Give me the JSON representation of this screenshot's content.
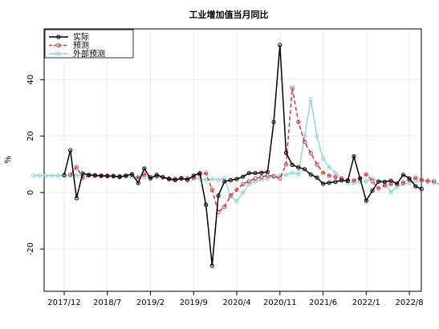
{
  "chart_data": {
    "type": "line",
    "title": "工业增加值当月同比",
    "xlabel": "",
    "ylabel": "%",
    "ylim": [
      -35,
      58
    ],
    "yticks": [
      -20,
      0,
      20,
      40
    ],
    "x_tick_labels": [
      "2017/12",
      "2018/7",
      "2019/2",
      "2019/9",
      "2020/4",
      "2020/11",
      "2021/6",
      "2022/1",
      "2022/8"
    ],
    "x_tick_index": [
      0,
      7,
      14,
      21,
      28,
      35,
      42,
      49,
      56
    ],
    "grid": true,
    "legend_position": "top-left",
    "series": [
      {
        "name": "实际",
        "color": "#000000",
        "dash": "solid",
        "start_index": 0,
        "values": [
          6.2,
          15.0,
          -2.0,
          6.8,
          6.3,
          6.0,
          6.0,
          5.8,
          5.9,
          5.5,
          6.0,
          6.5,
          3.4,
          8.5,
          5.0,
          6.3,
          5.4,
          4.8,
          4.4,
          5.0,
          4.5,
          6.0,
          6.9,
          -4.3,
          -25.9,
          -1.1,
          3.9,
          4.4,
          4.8,
          5.6,
          6.9,
          6.9,
          7.0,
          7.3,
          25.0,
          52.3,
          14.1,
          9.8,
          8.9,
          8.3,
          6.4,
          5.3,
          3.1,
          3.5,
          3.8,
          4.3,
          4.1,
          12.8,
          5.0,
          -2.9,
          0.7,
          3.9,
          3.8,
          4.2,
          3.1,
          6.3,
          5.0,
          2.2,
          1.3
        ]
      },
      {
        "name": "预测",
        "color": "#e03030",
        "dash": "dashed",
        "start_index": 1,
        "values": [
          6.3,
          9.0,
          5.2,
          6.0,
          6.2,
          5.8,
          6.0,
          5.7,
          5.8,
          5.9,
          6.3,
          5.2,
          6.5,
          5.5,
          5.8,
          5.5,
          5.0,
          4.8,
          5.2,
          5.0,
          5.2,
          6.5,
          6.8,
          1.0,
          -7.0,
          -5.0,
          -1.0,
          1.0,
          3.0,
          4.0,
          5.0,
          5.5,
          6.0,
          5.8,
          5.0,
          10.0,
          37.0,
          25.0,
          18.0,
          14.0,
          10.0,
          7.0,
          6.0,
          5.5,
          5.0,
          4.5,
          4.3,
          5.0,
          6.5,
          4.0,
          1.5,
          2.5,
          3.0,
          3.2,
          3.5,
          4.5,
          5.2,
          4.5,
          4.0,
          4.0
        ]
      },
      {
        "name": "外部预测",
        "color": "#7fd4e0",
        "dash": "solid",
        "start_index": -5,
        "values": [
          6.0,
          6.0,
          6.0,
          6.0,
          6.0,
          6.0,
          6.1,
          6.2,
          6.0,
          6.0,
          6.0,
          5.9,
          5.8,
          5.8,
          5.7,
          5.7,
          5.5,
          5.5,
          5.4,
          5.6,
          5.5,
          5.5,
          5.0,
          5.0,
          5.0,
          5.0,
          5.0,
          5.0,
          4.5,
          4.8,
          4.5,
          5.0,
          -1.5,
          -3.0,
          0.0,
          3.0,
          4.0,
          4.5,
          5.0,
          5.5,
          6.0,
          6.3,
          7.0,
          6.5,
          20.0,
          33.0,
          20.0,
          12.0,
          9.0,
          7.0,
          5.0,
          3.5,
          3.5,
          3.8,
          4.0,
          5.0,
          4.0,
          3.5,
          0.0,
          2.0,
          3.0,
          3.5,
          4.0,
          4.0,
          4.5,
          3.5,
          3.0,
          1.5
        ]
      }
    ]
  }
}
